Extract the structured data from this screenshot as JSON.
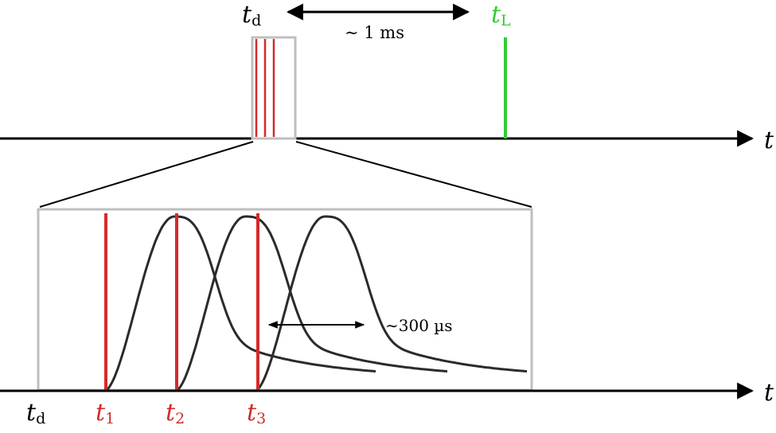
{
  "colors": {
    "axis": "#000000",
    "box": "#bfbfbf",
    "pulse": "#d32b2b",
    "laser": "#33cc33",
    "curve": "#2b2b2b"
  },
  "top_timeline": {
    "axis_label": "t",
    "td_label": {
      "base": "t",
      "sub": "d"
    },
    "tL_label": {
      "base": "t",
      "sub": "L"
    },
    "interval_label": "∼ 1 ms",
    "pulse_lines_count": 3
  },
  "bottom_timeline": {
    "axis_label": "t",
    "width_label": "∼300 µs",
    "tick_labels": [
      {
        "base": "t",
        "sub": "d",
        "color": "#000000"
      },
      {
        "base": "t",
        "sub": "1",
        "color": "#d32b2b"
      },
      {
        "base": "t",
        "sub": "2",
        "color": "#d32b2b"
      },
      {
        "base": "t",
        "sub": "3",
        "color": "#d32b2b"
      }
    ]
  }
}
